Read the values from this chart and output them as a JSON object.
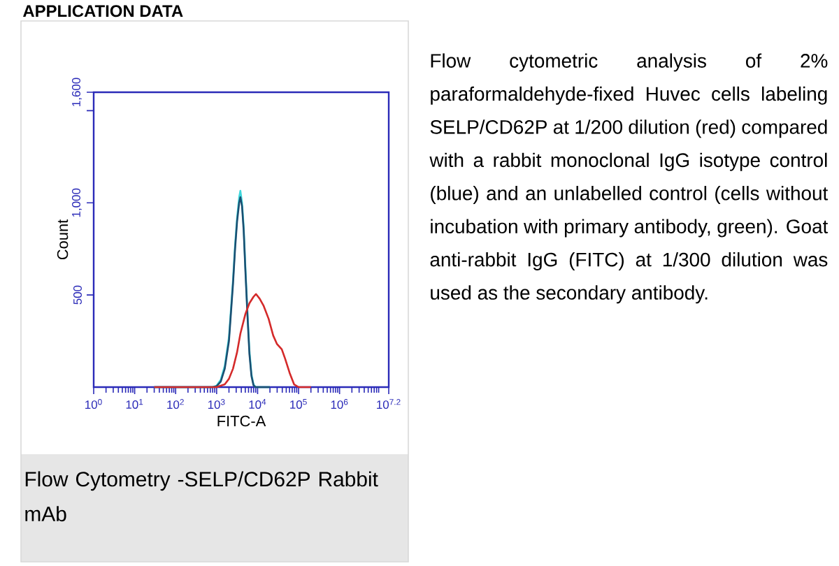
{
  "chart_data": {
    "type": "line",
    "title": "APPLICATION DATA",
    "xlabel": "FITC-A",
    "ylabel": "Count",
    "log": "x",
    "marker": "none",
    "line_style": "solid",
    "xlim": [
      1,
      15848932
    ],
    "xticks": [
      {
        "value": 1,
        "label": "10$^{0}$"
      },
      {
        "value": 10,
        "label": "10$^{1}$"
      },
      {
        "value": 100,
        "label": "10$^{2}$"
      },
      {
        "value": 1000,
        "label": "10$^{3}$"
      },
      {
        "value": 10000,
        "label": "10$^{4}$"
      },
      {
        "value": 100000,
        "label": "10$^{5}$"
      },
      {
        "value": 1000000,
        "label": "10$^{6}$"
      },
      {
        "value": 15848932,
        "label": "10$^{7.2}$"
      }
    ],
    "ylim": [
      0,
      1600
    ],
    "yticks": [
      {
        "value": 500,
        "label": "500"
      },
      {
        "value": 1000,
        "label": "1,000"
      },
      {
        "value": 1500,
        "label": null
      },
      {
        "value": 1600,
        "label": "1,600"
      }
    ],
    "series": [
      {
        "color": "#3fd7dc",
        "x": [
          30,
          800,
          1000,
          1260,
          1580,
          2000,
          2510,
          2820,
          3160,
          3550,
          3800,
          4170,
          4570,
          5010,
          5620,
          6310,
          7080,
          7940,
          8910,
          20000
        ],
        "values": [
          0,
          0,
          8,
          40,
          115,
          270,
          580,
          770,
          920,
          1030,
          1065,
          1000,
          870,
          660,
          420,
          200,
          70,
          15,
          0,
          0
        ]
      },
      {
        "color": "#1b4f72",
        "x": [
          30,
          800,
          1000,
          1260,
          1580,
          2000,
          2510,
          2820,
          3160,
          3550,
          3800,
          4170,
          4570,
          5010,
          5620,
          6310,
          7080,
          7940,
          8910,
          20000
        ],
        "values": [
          0,
          0,
          5,
          30,
          100,
          250,
          560,
          750,
          900,
          1000,
          1030,
          980,
          850,
          640,
          400,
          180,
          60,
          10,
          0,
          0
        ]
      },
      {
        "color": "#d42a2a",
        "x": [
          30,
          1000,
          1580,
          2000,
          2510,
          3160,
          3800,
          5010,
          6310,
          7940,
          9120,
          11200,
          14100,
          18600,
          24000,
          29500,
          38900,
          46800,
          60300,
          77600,
          100000,
          200000
        ],
        "values": [
          0,
          0,
          15,
          45,
          100,
          190,
          290,
          395,
          455,
          490,
          505,
          480,
          440,
          370,
          280,
          235,
          205,
          155,
          78,
          15,
          0,
          0
        ]
      }
    ],
    "annotations": [
      "Flow cytometric analysis of 2% paraformaldehyde-fixed Huvec cells labeling SELP/CD62P at 1/200 dilution (red) compared with a rabbit monoclonal IgG isotype control (blue) and an unlabelled control (cells without incubation with primary antibody, green). Goat anti-rabbit IgG (FITC) at 1/300 dilution was used as the secondary antibody.",
      "Flow Cytometry -SELP/CD62P Rabbit mAb"
    ]
  }
}
